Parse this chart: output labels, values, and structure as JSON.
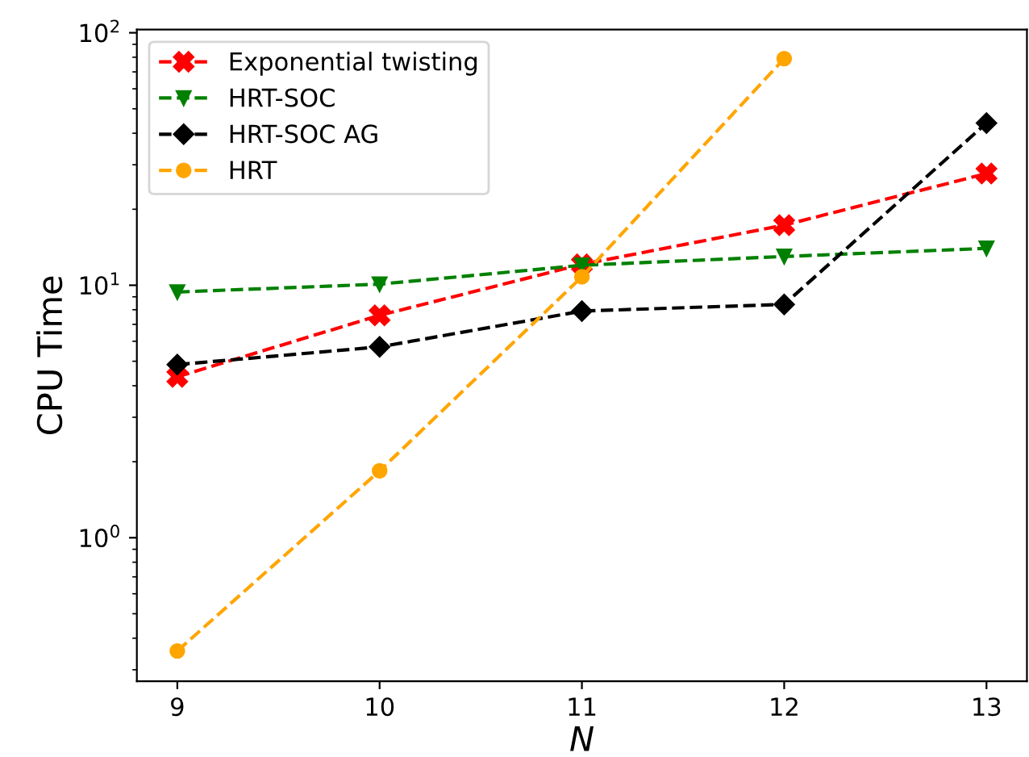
{
  "chart_data": {
    "type": "line",
    "xlabel": "N",
    "ylabel": "CPU Time",
    "log": "y",
    "grid": false,
    "legend": "top left",
    "line_style": "dashed",
    "x": [
      9,
      10,
      11,
      12,
      13
    ],
    "xlim": [
      8.8,
      13.2
    ],
    "xticks": [
      9,
      10,
      11,
      12,
      13
    ],
    "ylim": [
      0.27,
      103
    ],
    "yticks": [
      {
        "value": 1,
        "label": "10$^{0}$"
      },
      {
        "value": 10,
        "label": "10$^{1}$"
      },
      {
        "value": 100,
        "label": "10$^{2}$"
      }
    ],
    "series": [
      {
        "name": "Exponential twisting",
        "color": "#ff0000",
        "marker": "cross",
        "values": [
          4.34,
          7.6,
          12.1,
          17.3,
          27.7
        ]
      },
      {
        "name": "HRT-SOC",
        "color": "#008000",
        "marker": "triangle",
        "values": [
          9.4,
          10.1,
          12.0,
          13.0,
          14.0
        ]
      },
      {
        "name": "HRT-SOC AG",
        "color": "#000000",
        "marker": "diamond",
        "values": [
          4.85,
          5.7,
          7.9,
          8.4,
          43.9
        ]
      },
      {
        "name": "HRT",
        "color": "#ffa500",
        "marker": "circle",
        "values": [
          0.356,
          1.84,
          10.8,
          79,
          null
        ]
      }
    ]
  }
}
